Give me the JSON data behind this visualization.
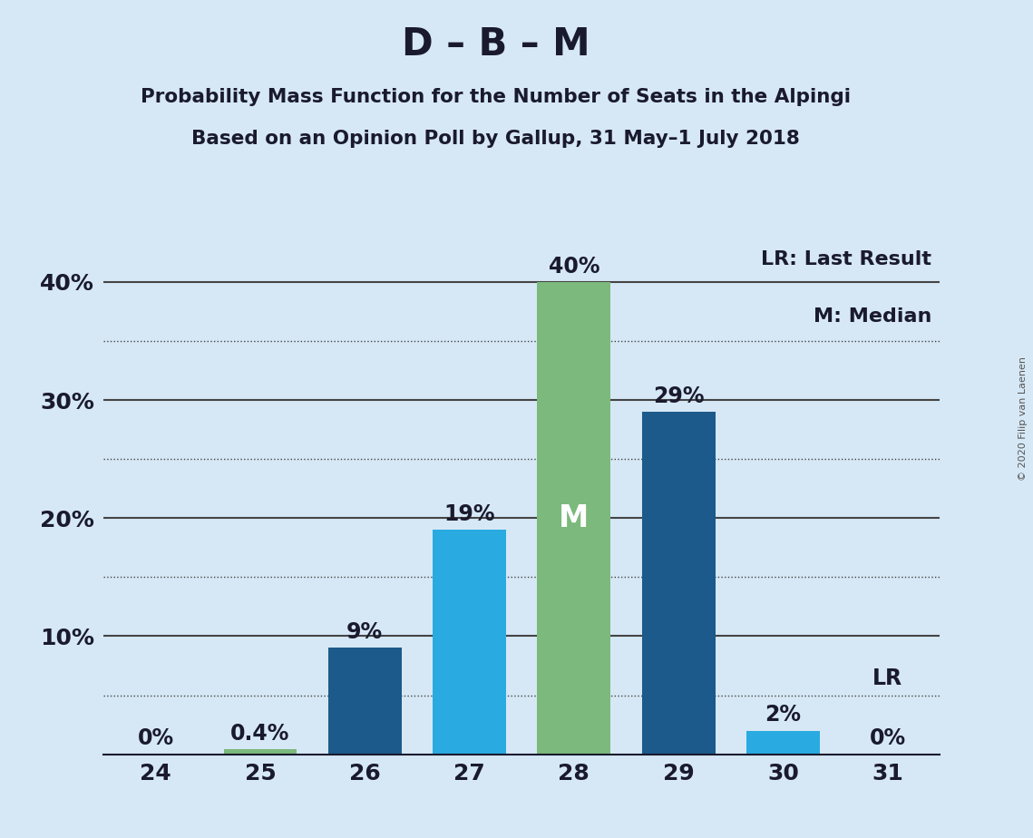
{
  "title": "D – B – M",
  "subtitle1": "Probability Mass Function for the Number of Seats in the Alpingi",
  "subtitle2": "Based on an Opinion Poll by Gallup, 31 May–1 July 2018",
  "copyright": "© 2020 Filip van Laenen",
  "legend_lr": "LR: Last Result",
  "legend_m": "M: Median",
  "categories": [
    24,
    25,
    26,
    27,
    28,
    29,
    30,
    31
  ],
  "values": [
    0.0,
    0.4,
    9.0,
    19.0,
    40.0,
    29.0,
    2.0,
    0.0
  ],
  "labels": [
    "0%",
    "0.4%",
    "9%",
    "19%",
    "40%",
    "29%",
    "2%",
    "0%"
  ],
  "colors": [
    "#7cb97c",
    "#7cb97c",
    "#1b5a8a",
    "#29aae1",
    "#7cb97c",
    "#1b5a8a",
    "#29aae1",
    "#7cb97c"
  ],
  "median_bar": 4,
  "median_label": "M",
  "lr_bar": 7,
  "lr_label": "LR",
  "ylim": [
    0,
    44
  ],
  "yticks": [
    10,
    20,
    30,
    40
  ],
  "ytick_labels": [
    "10%",
    "20%",
    "30%",
    "40%"
  ],
  "grid_lines": [
    5,
    10,
    15,
    20,
    25,
    30,
    35,
    40
  ],
  "background_color": "#d6e8f5",
  "plot_background": "#d6e8f5",
  "title_fontsize": 30,
  "subtitle_fontsize": 15.5,
  "label_fontsize": 17,
  "axis_fontsize": 18,
  "legend_fontsize": 16,
  "copyright_fontsize": 8
}
